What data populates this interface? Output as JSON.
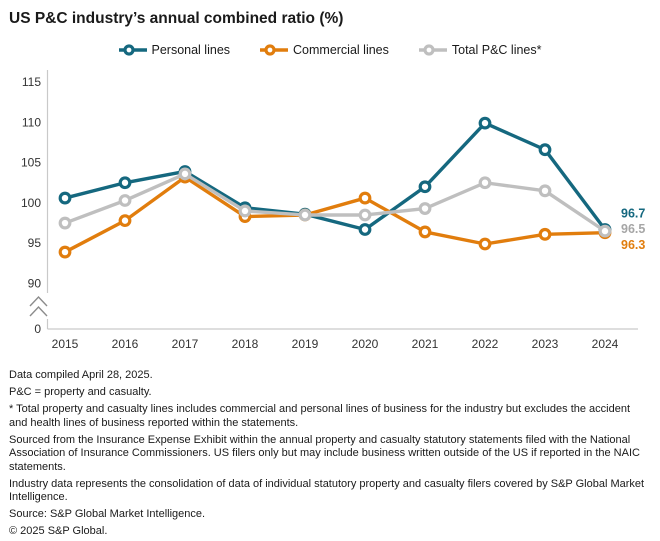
{
  "title": "US P&C industry’s annual combined ratio (%)",
  "chart_data": {
    "type": "line",
    "categories": [
      "2015",
      "2016",
      "2017",
      "2018",
      "2019",
      "2020",
      "2021",
      "2022",
      "2023",
      "2024"
    ],
    "series": [
      {
        "name": "Personal lines",
        "color": "#15687F",
        "values": [
          100.6,
          102.5,
          103.9,
          99.4,
          98.6,
          96.7,
          102.0,
          109.9,
          106.6,
          96.7
        ],
        "end_label": "96.7"
      },
      {
        "name": "Commercial lines",
        "color": "#E17D0D",
        "values": [
          93.9,
          97.8,
          103.2,
          98.3,
          98.5,
          100.6,
          96.4,
          94.9,
          96.1,
          96.3
        ],
        "end_label": "96.3"
      },
      {
        "name": "Total P&C lines*",
        "color": "#BFBFBF",
        "label_color": "#A6A6A6",
        "values": [
          97.5,
          100.3,
          103.6,
          99.0,
          98.5,
          98.5,
          99.3,
          102.5,
          101.5,
          96.5
        ],
        "end_label": "96.5"
      }
    ],
    "y_ticks": [
      115,
      110,
      105,
      100,
      95,
      90
    ],
    "y_zero_label": "0",
    "y_axis_break": true,
    "ylim": [
      90,
      115
    ],
    "grid": false,
    "legend_position": "top",
    "axis_color": "#C9C9C9",
    "tick_text_color": "#333333"
  },
  "footnotes": [
    "Data compiled April 28, 2025.",
    "P&C = property and casualty.",
    "* Total property and casualty lines includes commercial and personal lines of business for the industry but excludes the accident and health lines of business reported within the statements.",
    "Sourced from the Insurance Expense Exhibit within the annual property and casualty statutory statements filed with the National Association of Insurance Commissioners. US filers only but may include business written outside of the US if reported in the NAIC statements.",
    "Industry data represents the consolidation of data of individual statutory property and casualty filers covered by S&P Global Market Intelligence.",
    "Source: S&P Global Market Intelligence.",
    "© 2025 S&P Global."
  ]
}
